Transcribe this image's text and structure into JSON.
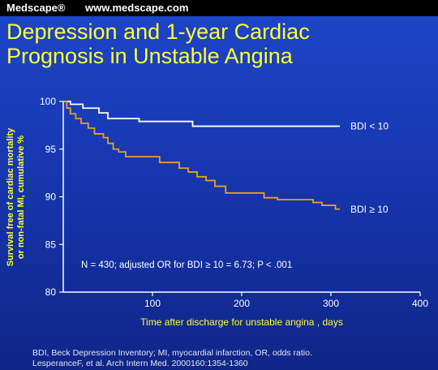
{
  "header": {
    "brand": "Medscape®",
    "url": "www.medscape.com"
  },
  "title": {
    "line1": "Depression and 1-year Cardiac",
    "line2": "Prognosis in Unstable Angina"
  },
  "footnote": {
    "line1": "BDI, Beck Depression Inventory; MI, myocardial infarction, OR, odds ratio.",
    "line2": "LesperanceF, et al. Arch Intern Med. 2000160:1354-1360"
  },
  "colors": {
    "accent": "#ffff33",
    "series_bdi_low": "#ffffff",
    "series_bdi_high": "#e8a317",
    "axis": "#ffffff"
  },
  "chart_data": {
    "type": "line",
    "title": "",
    "xlabel": "Time after discharge for unstable angina , days",
    "ylabel_line1": "Survival free of cardiac mortality",
    "ylabel_line2": "or non-fatal MI, cumulative %",
    "xlim": [
      0,
      400
    ],
    "ylim": [
      80,
      100
    ],
    "xticks": [
      100,
      200,
      300,
      400
    ],
    "yticks": [
      80,
      85,
      90,
      95,
      100
    ],
    "grid": false,
    "annotation": "N = 430;  adjusted OR for BDI  ≥ 10 = 6.73;  P < .001",
    "series": [
      {
        "name": "BDI < 10",
        "step": true,
        "x": [
          0,
          8,
          22,
          40,
          50,
          85,
          145,
          310
        ],
        "y": [
          100,
          99.7,
          99.3,
          98.8,
          98.2,
          97.9,
          97.4,
          97.4
        ]
      },
      {
        "name": "BDI ≥ 10",
        "step": true,
        "x": [
          0,
          4,
          8,
          14,
          20,
          28,
          35,
          45,
          50,
          56,
          62,
          70,
          108,
          118,
          130,
          140,
          150,
          160,
          170,
          175,
          182,
          200,
          225,
          232,
          240,
          280,
          290,
          300,
          305,
          310
        ],
        "y": [
          100,
          99.3,
          98.7,
          98.2,
          97.7,
          97.2,
          96.6,
          96.2,
          95.6,
          95.0,
          94.7,
          94.2,
          93.6,
          93.6,
          93.0,
          92.6,
          92.1,
          91.7,
          91.1,
          91.1,
          90.4,
          90.4,
          89.9,
          89.9,
          89.7,
          89.4,
          89.1,
          89.1,
          88.7,
          88.7
        ]
      }
    ]
  }
}
